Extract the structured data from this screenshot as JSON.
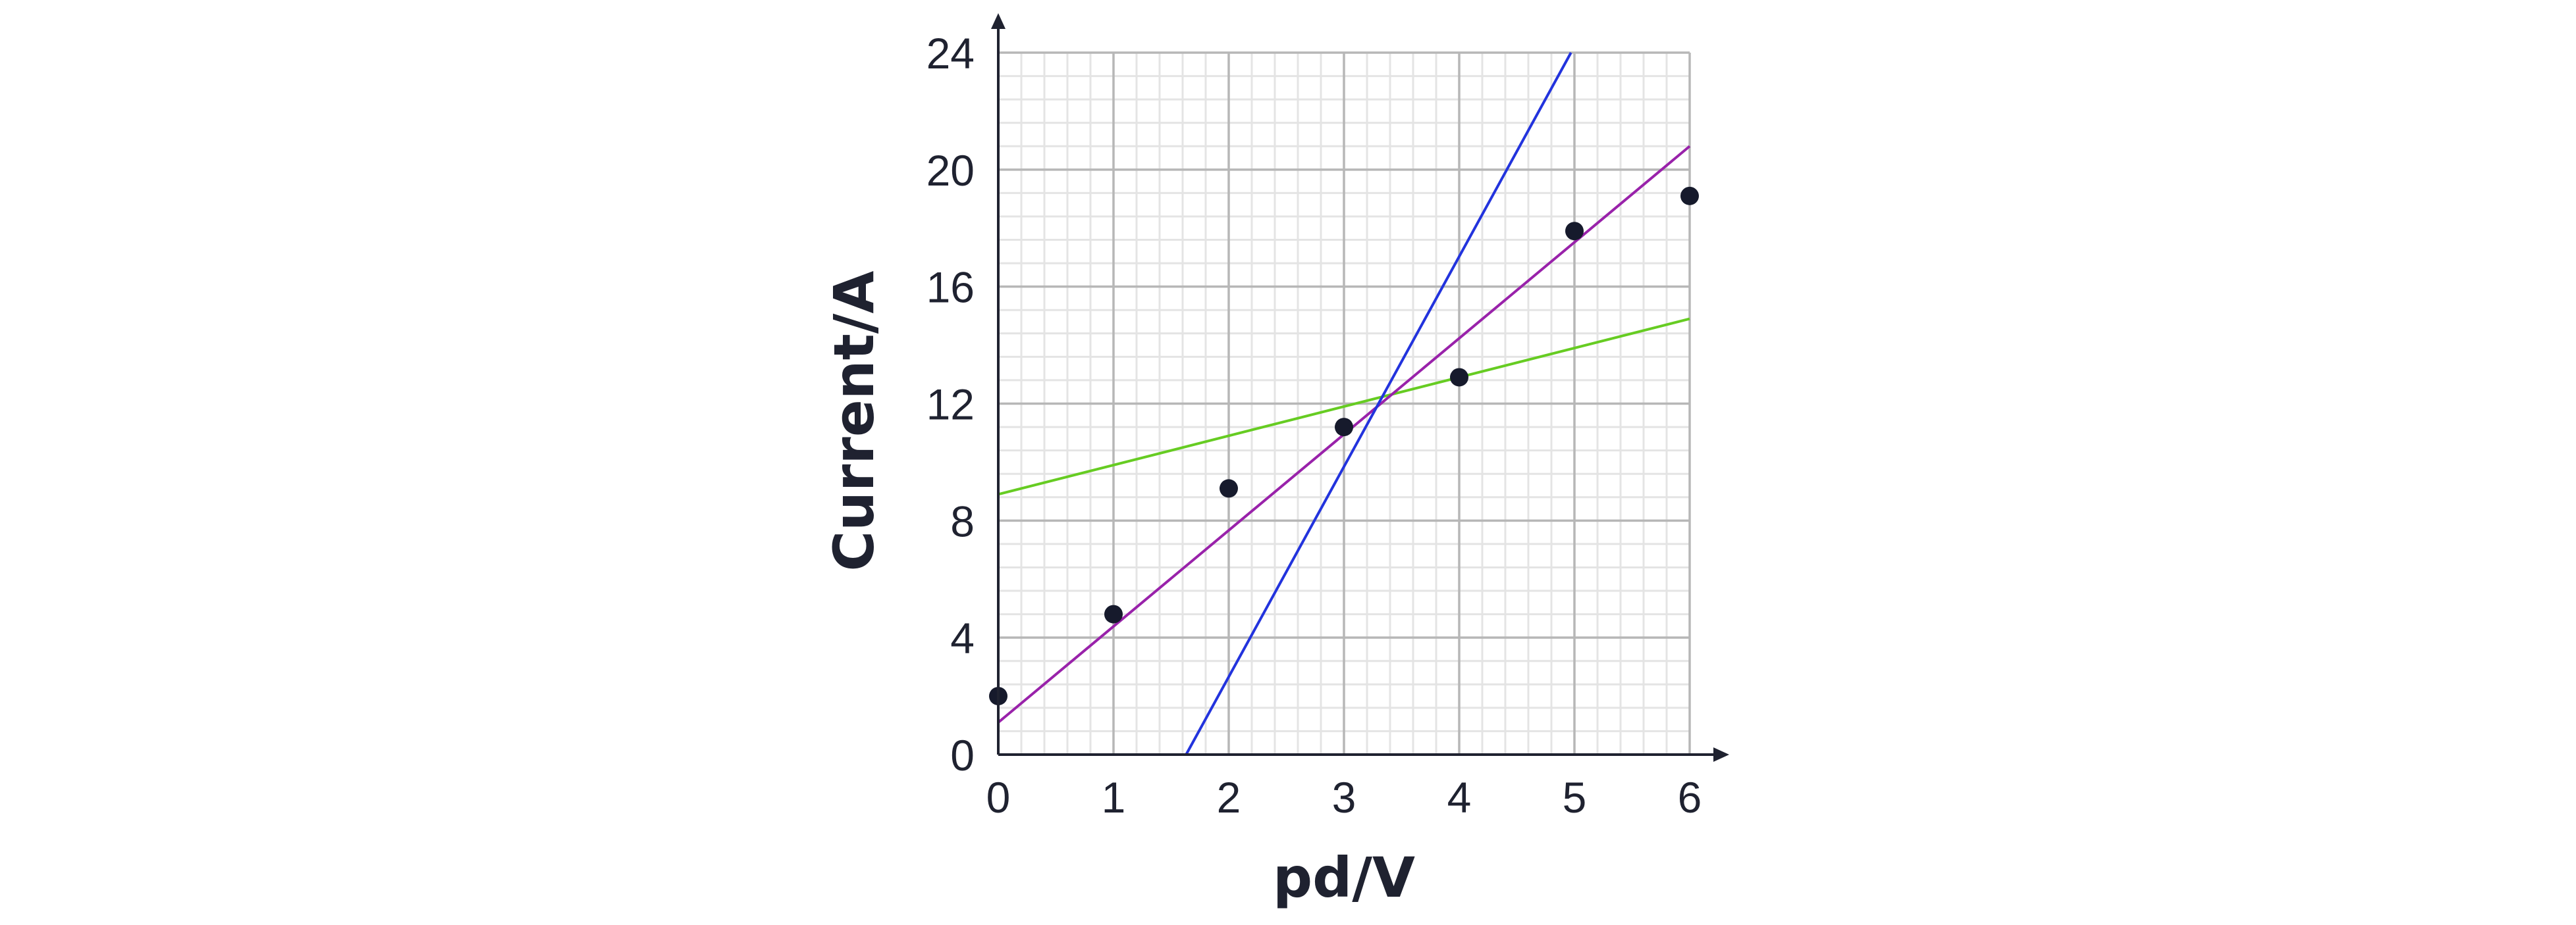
{
  "chart_data": {
    "type": "scatter",
    "xlabel": "pd/V",
    "ylabel": "Current/A",
    "xlim": [
      0,
      6
    ],
    "ylim": [
      0,
      24
    ],
    "x_ticks": [
      "0",
      "1",
      "2",
      "3",
      "4",
      "5",
      "6"
    ],
    "y_ticks": [
      "0",
      "4",
      "8",
      "12",
      "16",
      "20",
      "24"
    ],
    "x_minor_step": 0.2,
    "y_minor_step": 0.8,
    "grid": true,
    "points": [
      {
        "x": 0,
        "y": 2.0
      },
      {
        "x": 1,
        "y": 4.8
      },
      {
        "x": 2,
        "y": 9.1
      },
      {
        "x": 3,
        "y": 11.2
      },
      {
        "x": 4,
        "y": 12.9
      },
      {
        "x": 5,
        "y": 17.9
      },
      {
        "x": 6,
        "y": 19.1
      }
    ],
    "lines": [
      {
        "color": "#66cc22",
        "from": {
          "x": 0,
          "y": 8.9
        },
        "to": {
          "x": 6,
          "y": 14.9
        }
      },
      {
        "color": "#9922aa",
        "from": {
          "x": 0,
          "y": 1.1
        },
        "to": {
          "x": 6,
          "y": 20.8
        }
      },
      {
        "color": "#2233dd",
        "from": {
          "x": 1.63,
          "y": 0
        },
        "to": {
          "x": 4.97,
          "y": 24
        }
      }
    ],
    "colors": {
      "points": "#161a2c",
      "axes": "#1f2230",
      "major_grid": "#b7b7b7",
      "minor_grid": "#e4e4e4"
    }
  }
}
